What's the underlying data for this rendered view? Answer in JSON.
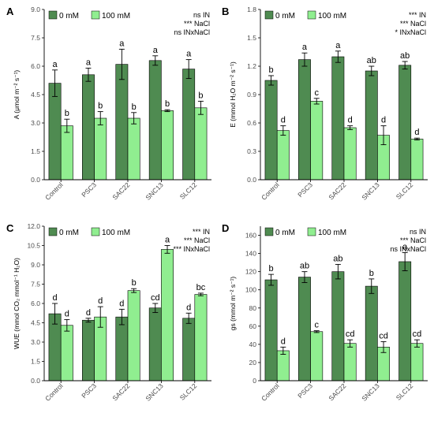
{
  "legend": {
    "entries": [
      {
        "label": "0 mM",
        "color": "#4f8b51"
      },
      {
        "label": "100 mM",
        "color": "#90ee90"
      }
    ]
  },
  "colors": {
    "dark": "#4f8b51",
    "light": "#90ee90",
    "axis": "#000000",
    "text": "#4d4d4d"
  },
  "chart_data": [
    {
      "type": "bar",
      "panel": "A",
      "ylabel": "A (μmol m⁻² s⁻¹)",
      "ylim": [
        0,
        9
      ],
      "yticks": [
        "0.0",
        "1.5",
        "3.0",
        "4.5",
        "6.0",
        "7.5",
        "9.0"
      ],
      "categories": [
        "Control",
        "PSC3",
        "SAC22",
        "SNC13",
        "SLC12"
      ],
      "series": [
        {
          "name": "0 mM",
          "values": [
            5.1,
            5.55,
            6.1,
            6.3,
            5.85
          ],
          "errors": [
            0.7,
            0.35,
            0.8,
            0.25,
            0.5
          ],
          "letters": [
            "a",
            "a",
            "a",
            "a",
            "a"
          ]
        },
        {
          "name": "100 mM",
          "values": [
            2.85,
            3.25,
            3.25,
            3.65,
            3.8
          ],
          "errors": [
            0.35,
            0.35,
            0.3,
            0.05,
            0.35
          ],
          "letters": [
            "b",
            "b",
            "b",
            "b",
            "b"
          ]
        }
      ],
      "stats": [
        "ns IN",
        "*** NaCl",
        "ns INxNaCl"
      ]
    },
    {
      "type": "bar",
      "panel": "B",
      "ylabel": "E (mmol H₂O m⁻² s⁻¹)",
      "ylim": [
        0,
        1.8
      ],
      "yticks": [
        "0.0",
        "0.3",
        "0.6",
        "0.9",
        "1.2",
        "1.5",
        "1.8"
      ],
      "categories": [
        "Control",
        "PSC3",
        "SAC22",
        "SNC13",
        "SLC12"
      ],
      "series": [
        {
          "name": "0 mM",
          "values": [
            1.05,
            1.27,
            1.3,
            1.15,
            1.21
          ],
          "errors": [
            0.05,
            0.07,
            0.06,
            0.05,
            0.04
          ],
          "letters": [
            "b",
            "a",
            "a",
            "ab",
            "ab"
          ]
        },
        {
          "name": "100 mM",
          "values": [
            0.52,
            0.83,
            0.55,
            0.47,
            0.43
          ],
          "errors": [
            0.05,
            0.03,
            0.02,
            0.1,
            0.01
          ],
          "letters": [
            "d",
            "c",
            "d",
            "d",
            "d"
          ]
        }
      ],
      "stats": [
        "*** IN",
        "*** NaCl",
        "* INxNaCl"
      ]
    },
    {
      "type": "bar",
      "panel": "C",
      "ylabel": "WUE (mmol CO₂ mmol⁻¹ H₂O)",
      "ylim": [
        0,
        12
      ],
      "yticks": [
        "0.0",
        "1.5",
        "3.0",
        "4.5",
        "6.0",
        "7.5",
        "9.0",
        "10.5",
        "12.0"
      ],
      "categories": [
        "Control",
        "PSC3",
        "SAC22",
        "SNC13",
        "SLC12"
      ],
      "series": [
        {
          "name": "0 mM",
          "values": [
            5.2,
            4.7,
            4.95,
            5.65,
            4.85
          ],
          "errors": [
            0.8,
            0.15,
            0.6,
            0.35,
            0.4
          ],
          "letters": [
            "d",
            "d",
            "d",
            "cd",
            "d"
          ]
        },
        {
          "name": "100 mM",
          "values": [
            4.3,
            4.95,
            7.0,
            10.2,
            6.7
          ],
          "errors": [
            0.45,
            0.8,
            0.15,
            0.3,
            0.1
          ],
          "letters": [
            "d",
            "d",
            "b",
            "a",
            "bc"
          ]
        }
      ],
      "stats": [
        "*** IN",
        "*** NaCl",
        "*** INxNaCl"
      ]
    },
    {
      "type": "bar",
      "panel": "D",
      "ylabel": "gs (mmol m⁻² s⁻¹)",
      "ylim": [
        0,
        170
      ],
      "yticks": [
        "0",
        "20",
        "40",
        "60",
        "80",
        "100",
        "120",
        "140",
        "160"
      ],
      "categories": [
        "Control",
        "PSC3",
        "SAC22",
        "SNC13",
        "SLC12"
      ],
      "series": [
        {
          "name": "0 mM",
          "values": [
            111,
            114,
            120,
            104,
            131
          ],
          "errors": [
            6,
            6,
            8,
            8,
            10
          ],
          "letters": [
            "b",
            "ab",
            "ab",
            "b",
            "a"
          ]
        },
        {
          "name": "100 mM",
          "values": [
            33,
            54,
            41,
            37,
            41
          ],
          "errors": [
            4,
            1,
            4,
            6,
            4
          ],
          "letters": [
            "d",
            "c",
            "cd",
            "cd",
            "cd"
          ]
        }
      ],
      "stats": [
        "ns IN",
        "*** NaCl",
        "ns INxNaCl"
      ]
    }
  ]
}
